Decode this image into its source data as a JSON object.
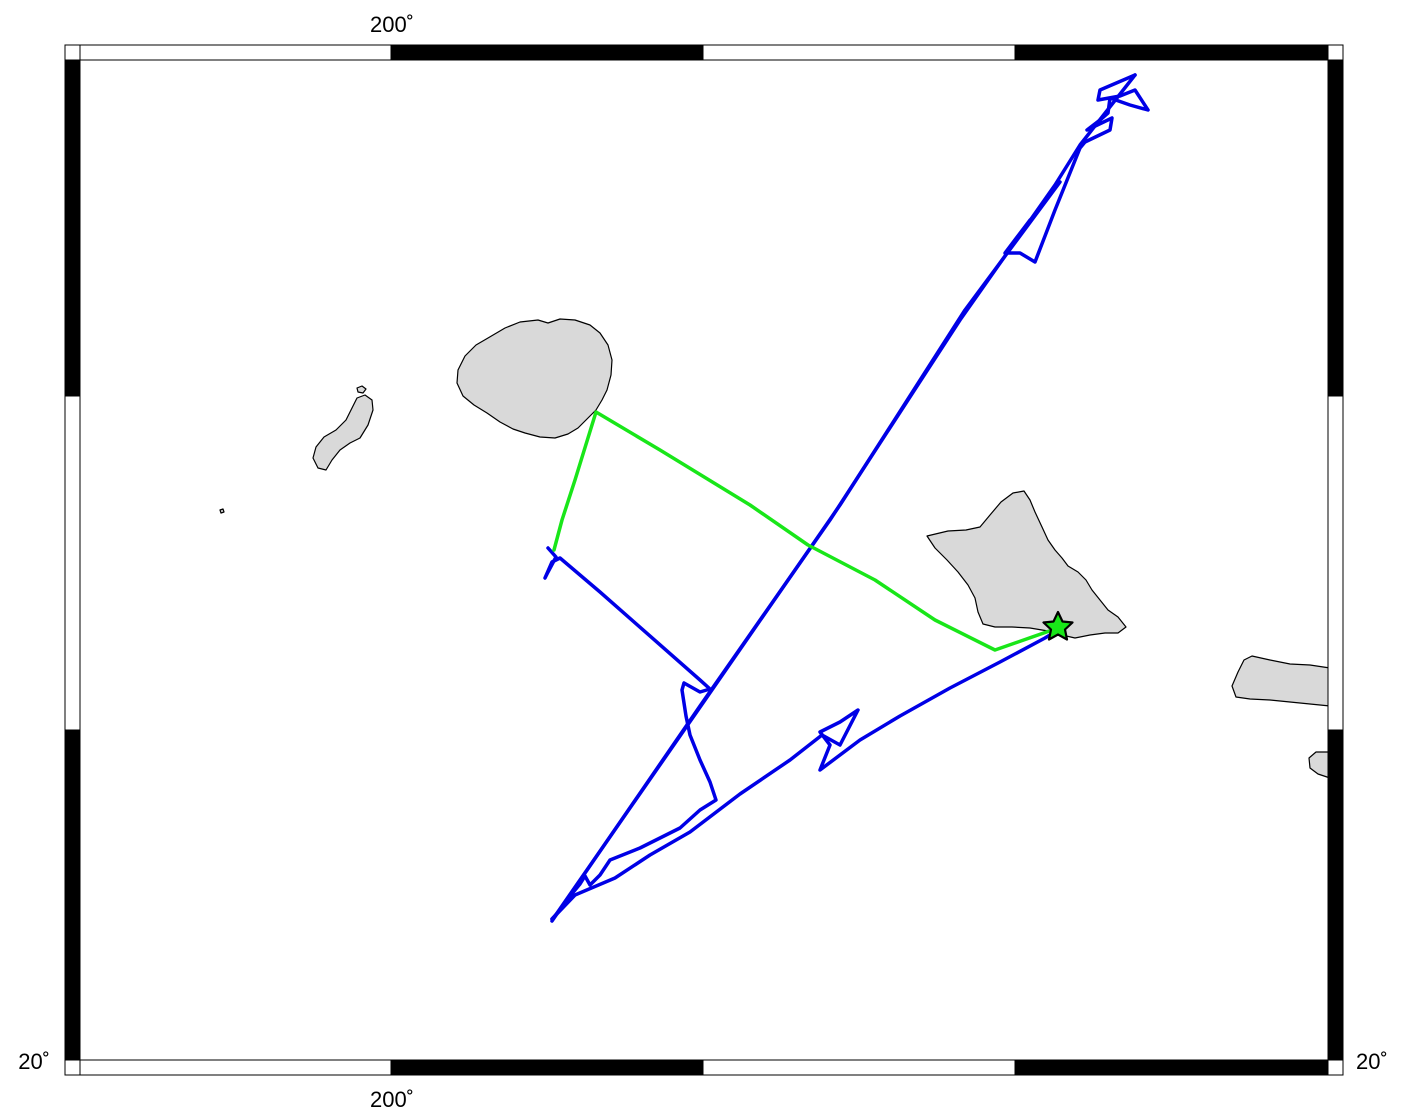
{
  "map": {
    "type": "track-map",
    "projection": "mercator",
    "frame_colors": {
      "dark": "#000000",
      "light": "#ffffff"
    },
    "land_color": "#d9d9d9",
    "labels": {
      "top_lon": "200˚",
      "bottom_lon": "200˚",
      "left_lat": "20˚",
      "right_lat": "20˚"
    },
    "tracks": [
      {
        "name": "blue track",
        "color": "#0000e6"
      },
      {
        "name": "green track",
        "color": "#19e619"
      }
    ],
    "marker": {
      "symbol": "star",
      "color": "#19e619"
    }
  }
}
